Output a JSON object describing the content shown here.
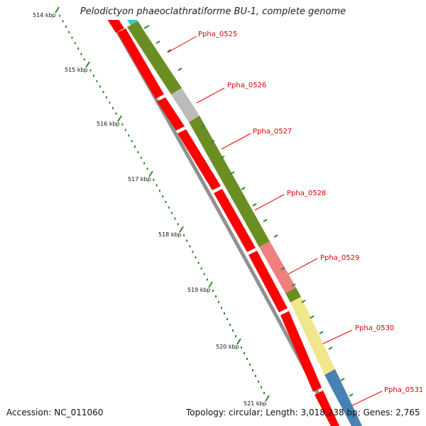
{
  "title": "Pelodictyon phaeoclathratiforme BU-1, complete genome",
  "footer": {
    "accession": "Accession: NC_011060",
    "summary": "Topology: circular; Length: 3,018,238 bp; Genes: 2,765"
  },
  "scale": {
    "ticks": [
      "514 kbp",
      "515 kbp",
      "516 kbp",
      "517 kbp",
      "518 kbp",
      "519 kbp",
      "520 kbp",
      "521 kbp"
    ]
  },
  "genes": [
    {
      "label": "Ppha_0525",
      "color": "#ff0000"
    },
    {
      "label": "Ppha_0526",
      "color": "#ff0000"
    },
    {
      "label": "Ppha_0527",
      "color": "#ff0000"
    },
    {
      "label": "Ppha_0528",
      "color": "#ff0000"
    },
    {
      "label": "Ppha_0529",
      "color": "#ff0000"
    },
    {
      "label": "Ppha_0530",
      "color": "#ff0000"
    },
    {
      "label": "Ppha_0531",
      "color": "#ff0000"
    }
  ],
  "cog_colors": {
    "cyan": "#33cccc",
    "olive": "#6b8e23",
    "gray": "#bbbbbb",
    "salmon": "#f08080",
    "yellow": "#f0e68c",
    "blue": "#4682b4"
  },
  "backbone_color": "#888888"
}
